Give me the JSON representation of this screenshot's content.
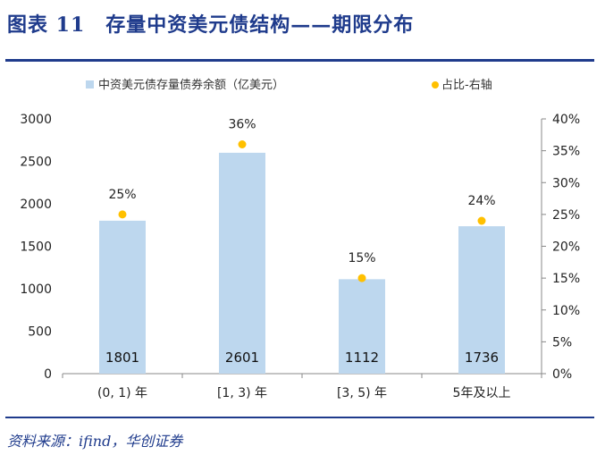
{
  "figure": {
    "title": "图表 11　存量中资美元债结构——期限分布",
    "source": "资料来源：ifind，华创证券"
  },
  "colors": {
    "bar": "#bdd7ee",
    "dot": "#ffc000",
    "rule": "#1f3b8c"
  },
  "chart_data": {
    "type": "bar",
    "categories": [
      "(0, 1) 年",
      "[1, 3) 年",
      "[3, 5) 年",
      "5年及以上"
    ],
    "series": [
      {
        "name": "中资美元债存量债券余额（亿美元）",
        "type": "bar",
        "axis": "left",
        "values": [
          1801,
          2601,
          1112,
          1736
        ],
        "labels": [
          "1801",
          "2601",
          "1112",
          "1736"
        ]
      },
      {
        "name": "占比-右轴",
        "type": "scatter",
        "axis": "right",
        "values": [
          25,
          36,
          15,
          24
        ],
        "labels": [
          "25%",
          "36%",
          "15%",
          "24%"
        ]
      }
    ],
    "ylim": [
      0,
      3000
    ],
    "yticks": [
      "0",
      "500",
      "1000",
      "1500",
      "2000",
      "2500",
      "3000"
    ],
    "y2lim": [
      0,
      40
    ],
    "y2ticks": [
      "0%",
      "5%",
      "10%",
      "15%",
      "20%",
      "25%",
      "30%",
      "35%",
      "40%"
    ],
    "legend_position": "top"
  }
}
